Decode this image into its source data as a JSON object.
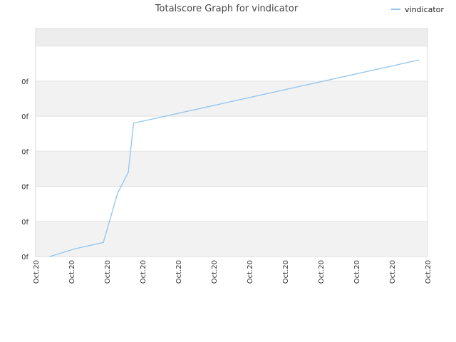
{
  "chart_data": {
    "type": "line",
    "title": "Totalscore Graph for vindicator",
    "xlabel": "",
    "ylabel": "",
    "x_tick_labels": [
      "Oct.20",
      "Oct.20",
      "Oct.20",
      "Oct.20",
      "Oct.20",
      "Oct.20",
      "Oct.20",
      "Oct.20",
      "Oct.20",
      "Oct.20",
      "Oct.20",
      "Oct.20"
    ],
    "y_tick_labels": [
      "0f",
      "0f",
      "0f",
      "0f",
      "0f",
      "0f"
    ],
    "ylim": [
      0,
      6.5
    ],
    "xlim": [
      0,
      11
    ],
    "grid": true,
    "legend_position": "top-right",
    "series": [
      {
        "name": "vindicator",
        "color": "#92c5f0",
        "points": [
          {
            "x": 0.4,
            "y": 0.0
          },
          {
            "x": 1.1,
            "y": 0.22
          },
          {
            "x": 1.9,
            "y": 0.4
          },
          {
            "x": 2.3,
            "y": 1.8
          },
          {
            "x": 2.6,
            "y": 2.4
          },
          {
            "x": 2.75,
            "y": 3.8
          },
          {
            "x": 10.75,
            "y": 5.6
          }
        ]
      }
    ]
  }
}
